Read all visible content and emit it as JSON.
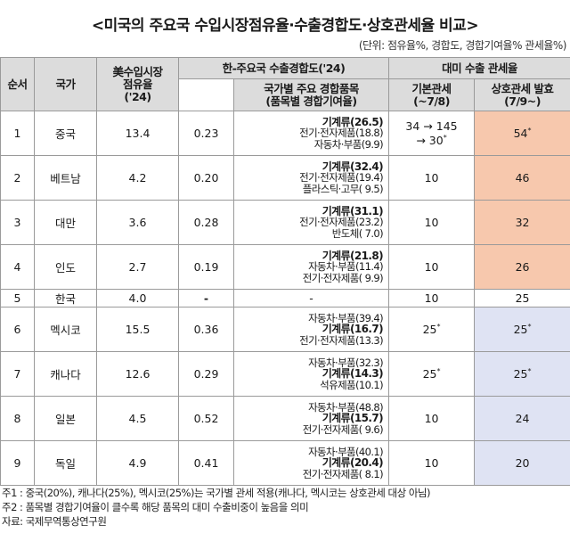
{
  "title": "<미국의 주요국 수입시장점유율·수출경합도·상호관세율 비교>",
  "unit": "(단위: 점유율%, 경합도, 경합기여율% 관세율%)",
  "headers": {
    "rank": "순서",
    "country": "국가",
    "share_line1": "美수입시장",
    "share_line2": "점유율",
    "share_line3": "('24)",
    "overlap_group": "한-주요국 수출경합도('24)",
    "overlap_items_line1": "국가별 주요 경합품목",
    "overlap_items_line2": "(품목별 경합기여율)",
    "tariff_group": "대미 수출 관세율",
    "base_tariff_line1": "기본관세",
    "base_tariff_line2": "(~7/8)",
    "reciprocal_line1": "상호관세 발효",
    "reciprocal_line2": "(7/9~)"
  },
  "rows": [
    {
      "rank": "1",
      "country": "중국",
      "share": "13.4",
      "overlap": "0.23",
      "items": [
        "기계류(26.5)",
        "전기·전자제품(18.8)",
        "자동차·부품(9.9)"
      ],
      "base": "34 → 145",
      "base2": "→ 30",
      "base2_sup": "*",
      "base_sup": "",
      "reciprocal": "54",
      "reciprocal_sup": "*"
    },
    {
      "rank": "2",
      "country": "베트남",
      "share": "4.2",
      "overlap": "0.20",
      "items": [
        "기계류(32.4)",
        "전기·전자제품(19.4)",
        "플라스틱·고무( 9.5)"
      ],
      "base": "10",
      "base2": "",
      "base2_sup": "",
      "base_sup": "",
      "reciprocal": "46",
      "reciprocal_sup": ""
    },
    {
      "rank": "3",
      "country": "대만",
      "share": "3.6",
      "overlap": "0.28",
      "items": [
        "기계류(31.1)",
        "전기·전자제품(23.2)",
        "반도체( 7.0)"
      ],
      "base": "10",
      "base2": "",
      "base2_sup": "",
      "base_sup": "",
      "reciprocal": "32",
      "reciprocal_sup": ""
    },
    {
      "rank": "4",
      "country": "인도",
      "share": "2.7",
      "overlap": "0.19",
      "items": [
        "기계류(21.8)",
        "자동차·부품(11.4)",
        "전기·전자제품( 9.9)"
      ],
      "base": "10",
      "base2": "",
      "base2_sup": "",
      "base_sup": "",
      "reciprocal": "26",
      "reciprocal_sup": ""
    },
    {
      "rank": "5",
      "country": "한국",
      "share": "4.0",
      "overlap": "-",
      "items": [
        "-"
      ],
      "base": "10",
      "base2": "",
      "base2_sup": "",
      "base_sup": "",
      "reciprocal": "25",
      "reciprocal_sup": ""
    },
    {
      "rank": "6",
      "country": "멕시코",
      "share": "15.5",
      "overlap": "0.36",
      "items": [
        "자동차·부품(39.4)",
        "기계류(16.7)",
        "전기·전자제품(13.3)"
      ],
      "base": "25",
      "base2": "",
      "base2_sup": "",
      "base_sup": "*",
      "reciprocal": "25",
      "reciprocal_sup": "*"
    },
    {
      "rank": "7",
      "country": "캐나다",
      "share": "12.6",
      "overlap": "0.29",
      "items": [
        "자동차·부품(32.3)",
        "기계류(14.3)",
        "석유제품(10.1)"
      ],
      "base": "25",
      "base2": "",
      "base2_sup": "",
      "base_sup": "*",
      "reciprocal": "25",
      "reciprocal_sup": "*"
    },
    {
      "rank": "8",
      "country": "일본",
      "share": "4.5",
      "overlap": "0.52",
      "items": [
        "자동차·부품(48.8)",
        "기계류(15.7)",
        "전기·전자제품( 9.6)"
      ],
      "base": "10",
      "base2": "",
      "base2_sup": "",
      "base_sup": "",
      "reciprocal": "24",
      "reciprocal_sup": ""
    },
    {
      "rank": "9",
      "country": "독일",
      "share": "4.9",
      "overlap": "0.41",
      "items": [
        "자동차·부품(40.1)",
        "기계류(20.4)",
        "전기·전자제품( 8.1)"
      ],
      "base": "10",
      "base2": "",
      "base2_sup": "",
      "base_sup": "",
      "reciprocal": "20",
      "reciprocal_sup": ""
    }
  ],
  "notes": {
    "note1": "주1 : 중국(20%), 캐나다(25%), 멕시코(25%)는 국가별 관세 적용(캐나다, 멕시코는 상호관세 대상 아님)",
    "note2": "주2 : 품목별 경합기여율이 클수록 해당 품목의 대미 수출비중이 높음을 의미",
    "source": "자료: 국제무역통상연구원"
  }
}
